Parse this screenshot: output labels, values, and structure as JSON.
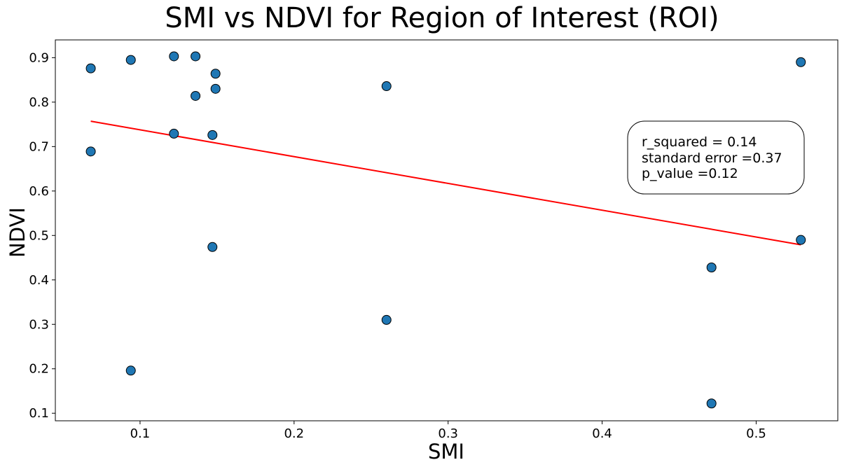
{
  "chart_data": {
    "type": "scatter",
    "title": "SMI vs NDVI for Region of Interest (ROI)",
    "xlabel": "SMI",
    "ylabel": "NDVI",
    "xlim": [
      0.045,
      0.553
    ],
    "ylim": [
      0.083,
      0.94
    ],
    "xticks": [
      0.1,
      0.2,
      0.3,
      0.4,
      0.5
    ],
    "xtick_labels": [
      "0.1",
      "0.2",
      "0.3",
      "0.4",
      "0.5"
    ],
    "yticks": [
      0.1,
      0.2,
      0.3,
      0.4,
      0.5,
      0.6,
      0.7,
      0.8,
      0.9
    ],
    "ytick_labels": [
      "0.1",
      "0.2",
      "0.3",
      "0.4",
      "0.5",
      "0.6",
      "0.7",
      "0.8",
      "0.9"
    ],
    "grid": false,
    "marker_color": "#1f77b4",
    "marker_edge_color": "#000000",
    "fit_line_color": "#ff0000",
    "points": [
      {
        "x": 0.068,
        "y": 0.876
      },
      {
        "x": 0.068,
        "y": 0.689
      },
      {
        "x": 0.094,
        "y": 0.895
      },
      {
        "x": 0.094,
        "y": 0.196
      },
      {
        "x": 0.122,
        "y": 0.903
      },
      {
        "x": 0.122,
        "y": 0.729
      },
      {
        "x": 0.136,
        "y": 0.903
      },
      {
        "x": 0.136,
        "y": 0.814
      },
      {
        "x": 0.147,
        "y": 0.726
      },
      {
        "x": 0.147,
        "y": 0.474
      },
      {
        "x": 0.149,
        "y": 0.864
      },
      {
        "x": 0.149,
        "y": 0.83
      },
      {
        "x": 0.26,
        "y": 0.836
      },
      {
        "x": 0.26,
        "y": 0.31
      },
      {
        "x": 0.471,
        "y": 0.428
      },
      {
        "x": 0.471,
        "y": 0.122
      },
      {
        "x": 0.529,
        "y": 0.89
      },
      {
        "x": 0.529,
        "y": 0.49
      }
    ],
    "fit_line": {
      "x": [
        0.068,
        0.529
      ],
      "y": [
        0.757,
        0.479
      ]
    },
    "annotation": {
      "lines": [
        "r_squared = 0.14",
        "standard error =0.37",
        "p_value =0.12"
      ]
    }
  }
}
